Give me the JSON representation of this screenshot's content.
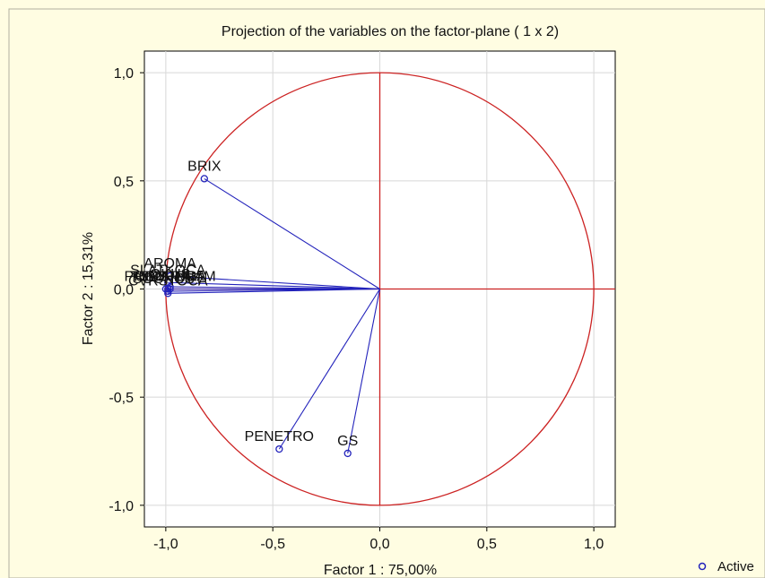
{
  "chart_data": {
    "type": "scatter",
    "title": "Projection of the variables on the factor-plane (  1 x   2)",
    "xlabel": "Factor 1 : 75,00%",
    "ylabel": "Factor 2 : 15,31%",
    "xlim": [
      -1.1,
      1.1
    ],
    "ylim": [
      -1.1,
      1.1
    ],
    "xticks": [
      "-1,0",
      "-0,5",
      "0,0",
      "0,5",
      "1,0"
    ],
    "yticks": [
      "1,0",
      "0,5",
      "0,0",
      "-0,5",
      "-1,0"
    ],
    "grid": true,
    "unit_circle": true,
    "legend": {
      "position": "bottom-right",
      "entries": [
        "Active"
      ]
    },
    "colors": {
      "circle": "#cc2222",
      "axes_lines": "#cc2222",
      "vectors": "#2222bb",
      "background": "#fffde2",
      "grid": "#d8d8d8"
    },
    "series": [
      {
        "name": "Active",
        "points": [
          {
            "label": "BRIX",
            "x": -0.82,
            "y": 0.51
          },
          {
            "label": "AROMA",
            "x": -0.98,
            "y": 0.06
          },
          {
            "label": "SLATKOCA",
            "x": -0.99,
            "y": 0.03
          },
          {
            "label": "OKUS",
            "x": -0.98,
            "y": 0.01
          },
          {
            "label": "TEKSTURA",
            "x": -0.99,
            "y": 0.0
          },
          {
            "label": "SOCNOST",
            "x": -0.99,
            "y": -0.01
          },
          {
            "label": "UKUPNO",
            "x": -1.0,
            "y": 0.0
          },
          {
            "label": "PROMJENAM",
            "x": -0.98,
            "y": 0.0
          },
          {
            "label": "CVRSTOCA",
            "x": -0.99,
            "y": -0.02
          },
          {
            "label": "PENETRO",
            "x": -0.47,
            "y": -0.74
          },
          {
            "label": "GS",
            "x": -0.15,
            "y": -0.76
          }
        ]
      }
    ]
  }
}
